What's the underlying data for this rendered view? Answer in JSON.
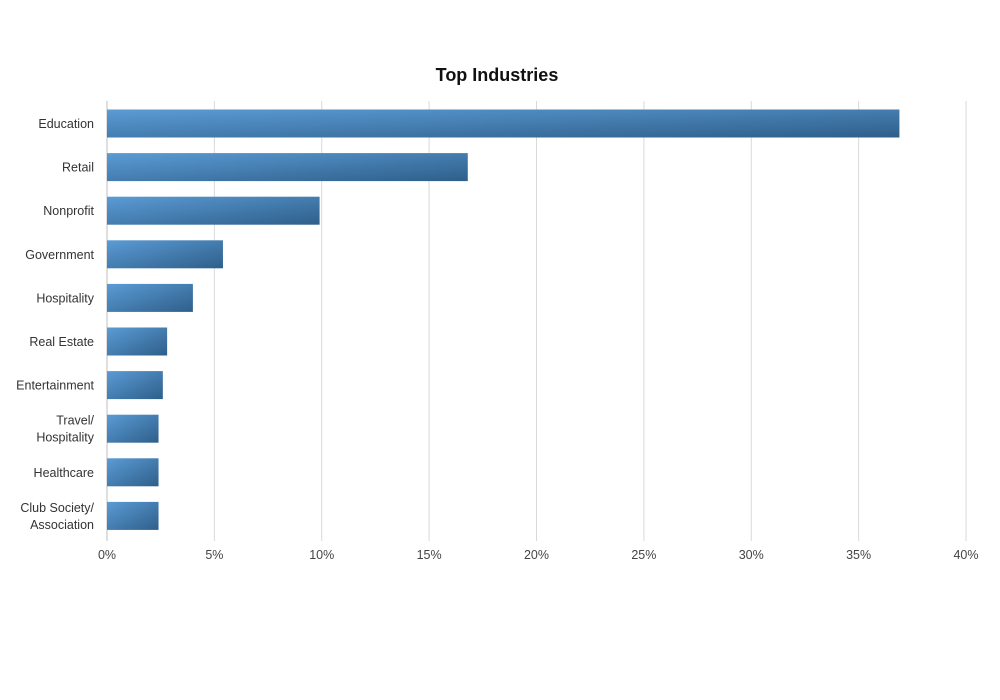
{
  "chart_data": {
    "type": "bar",
    "orientation": "horizontal",
    "title": "Top Industries",
    "xlabel": "",
    "ylabel": "",
    "categories": [
      "Education",
      "Retail",
      "Nonprofit",
      "Government",
      "Hospitality",
      "Real Estate",
      "Entertainment",
      "Travel/\nHospitality",
      "Healthcare",
      "Club Society/\nAssociation"
    ],
    "values": [
      36.9,
      16.8,
      9.9,
      5.4,
      4.0,
      2.8,
      2.6,
      2.4,
      2.4,
      2.4
    ],
    "unit": "%",
    "xlim": [
      0,
      40
    ],
    "ticks": [
      0,
      5,
      10,
      15,
      20,
      25,
      30,
      35,
      40
    ],
    "tick_labels": [
      "0%",
      "5%",
      "10%",
      "15%",
      "20%",
      "25%",
      "30%",
      "35%",
      "40%"
    ],
    "grid": true,
    "legend": "none",
    "colors": {
      "bar_light": "#5b9bd5",
      "bar_dark": "#2e5f8a",
      "grid": "#d9d9d9"
    }
  }
}
